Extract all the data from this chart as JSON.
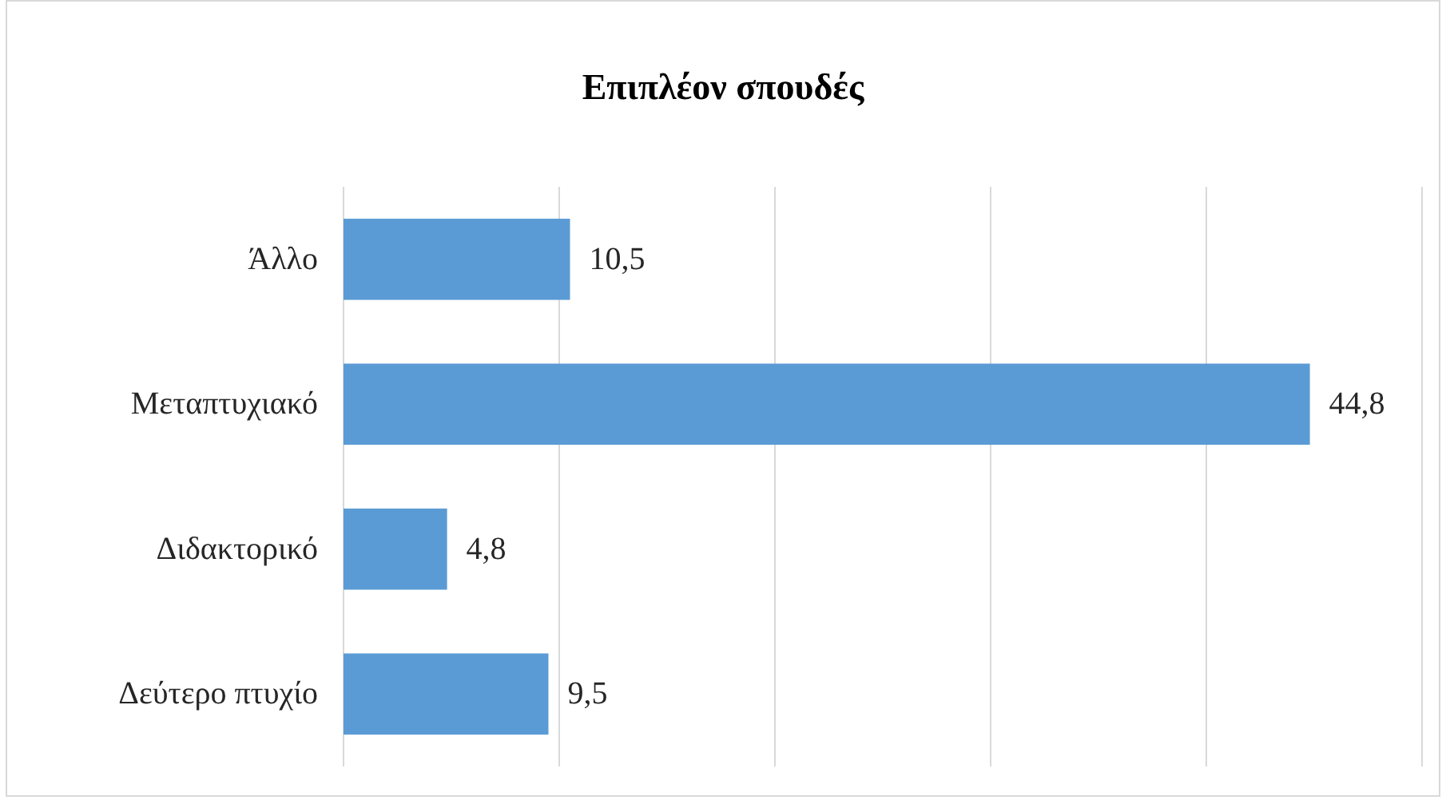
{
  "chart_data": {
    "type": "bar",
    "orientation": "horizontal",
    "title": "Επιπλέον σπουδές",
    "categories": [
      "Άλλο",
      "Μεταπτυχιακό",
      "Διδακτορικό",
      "Δεύτερο πτυχίο"
    ],
    "values": [
      10.5,
      44.8,
      4.8,
      9.5
    ],
    "value_labels": [
      "10,5",
      "44,8",
      "4,8",
      "9,5"
    ],
    "color": "#5b9bd5",
    "xlim": [
      0,
      50
    ],
    "xticks": [
      {
        "value": 0,
        "label": null
      },
      {
        "value": 10,
        "label": null
      },
      {
        "value": 20,
        "label": null
      },
      {
        "value": 30,
        "label": null
      },
      {
        "value": 40,
        "label": null
      },
      {
        "value": 50,
        "label": null
      }
    ],
    "grid": "x",
    "tick_labels": "y"
  }
}
